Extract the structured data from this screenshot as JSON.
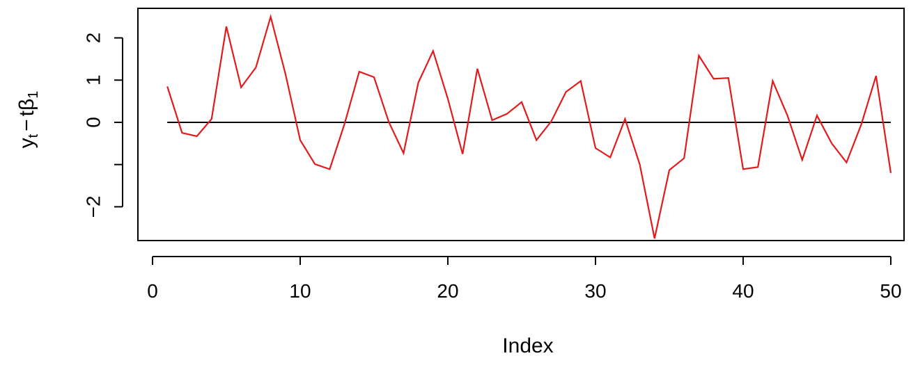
{
  "chart_data": {
    "type": "line",
    "xlabel": "Index",
    "ylabel": {
      "prefix": "y",
      "prefix_sub": "t",
      "minus": "−",
      "t": "t",
      "beta": "β",
      "beta_sub": "1"
    },
    "xlim": [
      0,
      50
    ],
    "ylim": [
      -2.8,
      2.7
    ],
    "xticks": [
      0,
      10,
      20,
      30,
      40,
      50
    ],
    "xtick_labels": [
      "0",
      "10",
      "20",
      "30",
      "40",
      "50"
    ],
    "yticks": [
      -2,
      -1,
      0,
      1,
      2
    ],
    "ytick_labels": [
      "−2",
      "",
      "0",
      "1",
      "2"
    ],
    "reference_line": {
      "y": 0,
      "x_from": 1,
      "x_to": 50,
      "color": "#000000"
    },
    "series": [
      {
        "color": "#e31a1c",
        "x": [
          1,
          2,
          3,
          4,
          5,
          6,
          7,
          8,
          9,
          10,
          11,
          12,
          13,
          14,
          15,
          16,
          17,
          18,
          19,
          20,
          21,
          22,
          23,
          24,
          25,
          26,
          27,
          28,
          29,
          30,
          31,
          32,
          33,
          34,
          35,
          36,
          37,
          38,
          39,
          40,
          41,
          42,
          43,
          44,
          45,
          46,
          47,
          48,
          49,
          50
        ],
        "values": [
          0.85,
          -0.25,
          -0.33,
          0.08,
          2.27,
          0.83,
          1.3,
          2.5,
          1.15,
          -0.42,
          -0.99,
          -1.11,
          -0.04,
          1.2,
          1.07,
          0.01,
          -0.73,
          0.94,
          1.69,
          0.56,
          -0.75,
          1.27,
          0.05,
          0.2,
          0.48,
          -0.42,
          0.02,
          0.72,
          0.98,
          -0.61,
          -0.83,
          0.08,
          -1.0,
          -2.75,
          -1.13,
          -0.85,
          1.58,
          1.03,
          1.05,
          -1.11,
          -1.06,
          0.98,
          0.16,
          -0.89,
          0.16,
          -0.5,
          -0.95,
          -0.05,
          1.1,
          -1.2
        ]
      }
    ]
  }
}
